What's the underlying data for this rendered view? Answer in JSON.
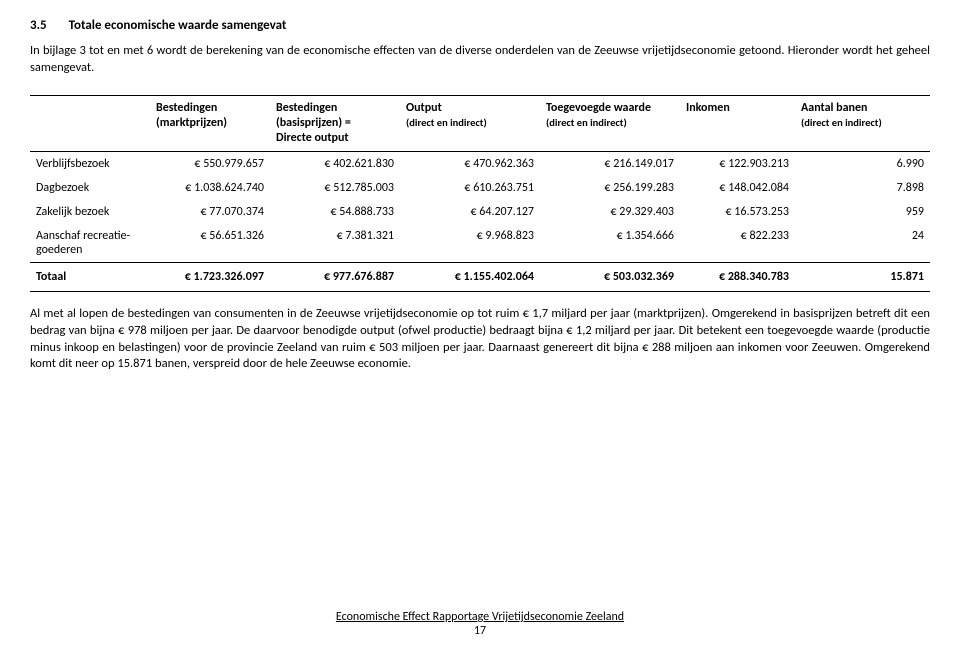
{
  "heading": {
    "number": "3.5",
    "title": "Totale economische waarde samengevat"
  },
  "intro": "In bijlage 3 tot en met 6 wordt de berekening van de economische effecten van de diverse onderdelen van de Zeeuwse vrijetijdseconomie getoond. Hieronder wordt het geheel samengevat.",
  "table": {
    "headers": {
      "h0": "",
      "h1": "Bestedingen (marktprijzen)",
      "h2_a": "Bestedingen (basisprijzen) =",
      "h2_b": "Directe output",
      "h3_a": "Output",
      "h3_b": "(direct en indirect)",
      "h4_a": "Toegevoegde waarde",
      "h4_b": "(direct en indirect)",
      "h5": "Inkomen",
      "h6_a": "Aantal banen",
      "h6_b": "(direct en indirect)"
    },
    "rows": [
      {
        "label": "Verblijfsbezoek",
        "c1": "€ 550.979.657",
        "c2": "€ 402.621.830",
        "c3": "€ 470.962.363",
        "c4": "€ 216.149.017",
        "c5": "€ 122.903.213",
        "c6": "6.990"
      },
      {
        "label": "Dagbezoek",
        "c1": "€ 1.038.624.740",
        "c2": "€ 512.785.003",
        "c3": "€ 610.263.751",
        "c4": "€ 256.199.283",
        "c5": "€ 148.042.084",
        "c6": "7.898"
      },
      {
        "label": "Zakelijk bezoek",
        "c1": "€ 77.070.374",
        "c2": "€ 54.888.733",
        "c3": "€ 64.207.127",
        "c4": "€ 29.329.403",
        "c5": "€ 16.573.253",
        "c6": "959"
      },
      {
        "label": "Aanschaf recreatie-goederen",
        "c1": "€ 56.651.326",
        "c2": "€ 7.381.321",
        "c3": "€ 9.968.823",
        "c4": "€ 1.354.666",
        "c5": "€ 822.233",
        "c6": "24"
      }
    ],
    "totals": {
      "label": "Totaal",
      "c1": "€ 1.723.326.097",
      "c2": "€ 977.676.887",
      "c3": "€ 1.155.402.064",
      "c4": "€ 503.032.369",
      "c5": "€ 288.340.783",
      "c6": "15.871"
    }
  },
  "after": "Al met al lopen de bestedingen van consumenten in de Zeeuwse vrijetijdseconomie op tot ruim € 1,7 miljard per jaar (marktprijzen). Omgerekend in basisprijzen betreft dit een bedrag van bijna € 978 miljoen per jaar. De daarvoor benodigde output (ofwel productie) bedraagt bijna € 1,2 miljard per jaar. Dit betekent een toegevoegde waarde (productie minus inkoop en belastingen) voor de provincie Zeeland van ruim € 503 miljoen per jaar. Daarnaast genereert dit bijna € 288 miljoen aan inkomen voor Zeeuwen. Omgerekend komt dit neer op 15.871 banen, verspreid door de hele Zeeuwse economie.",
  "footer": {
    "title": "Economische Effect Rapportage Vrijetijdseconomie Zeeland",
    "page": "17"
  }
}
